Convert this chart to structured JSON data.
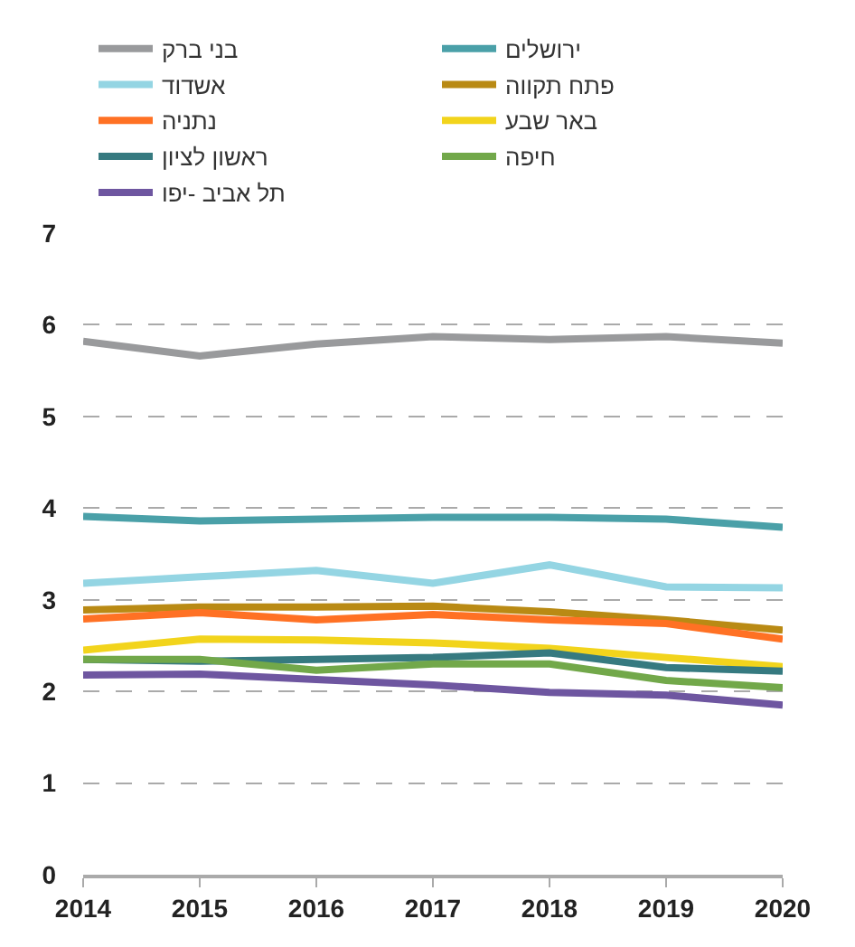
{
  "chart_data": {
    "type": "line",
    "x": [
      2014,
      2015,
      2016,
      2017,
      2018,
      2019,
      2020
    ],
    "xlim": [
      2014,
      2020
    ],
    "xticks": [
      2014,
      2015,
      2016,
      2017,
      2018,
      2019,
      2020
    ],
    "ylim": [
      0,
      7
    ],
    "yticks": [
      0,
      1,
      2,
      3,
      4,
      5,
      6,
      7
    ],
    "grid": "y",
    "legend": "top",
    "marker": "none",
    "line_style": "solid",
    "series": [
      {
        "name": "בני ברק",
        "color": "#999a9c",
        "values": [
          5.82,
          5.66,
          5.79,
          5.87,
          5.84,
          5.87,
          5.8
        ]
      },
      {
        "name": "ירושלים",
        "color": "#4aa0a8",
        "values": [
          3.91,
          3.86,
          3.88,
          3.9,
          3.9,
          3.88,
          3.79
        ]
      },
      {
        "name": "אשדוד",
        "color": "#94d5e3",
        "values": [
          3.18,
          3.25,
          3.32,
          3.18,
          3.38,
          3.14,
          3.13
        ]
      },
      {
        "name": "פתח תקווה",
        "color": "#b98a14",
        "values": [
          2.89,
          2.92,
          2.92,
          2.93,
          2.87,
          2.78,
          2.67
        ]
      },
      {
        "name": "נתניה",
        "color": "#ff7124",
        "values": [
          2.79,
          2.86,
          2.78,
          2.84,
          2.78,
          2.74,
          2.57
        ]
      },
      {
        "name": "באר שבע",
        "color": "#f2d41c",
        "values": [
          2.45,
          2.57,
          2.56,
          2.53,
          2.47,
          2.37,
          2.27
        ]
      },
      {
        "name": "ראשון לציון",
        "color": "#367a80",
        "values": [
          2.35,
          2.33,
          2.35,
          2.37,
          2.42,
          2.26,
          2.22
        ]
      },
      {
        "name": "חיפה",
        "color": "#72a84a",
        "values": [
          2.35,
          2.35,
          2.23,
          2.3,
          2.3,
          2.12,
          2.04
        ]
      },
      {
        "name": "תל אביב -יפו",
        "color": "#6e56a0",
        "values": [
          2.18,
          2.19,
          2.13,
          2.07,
          1.99,
          1.96,
          1.85
        ]
      }
    ]
  }
}
